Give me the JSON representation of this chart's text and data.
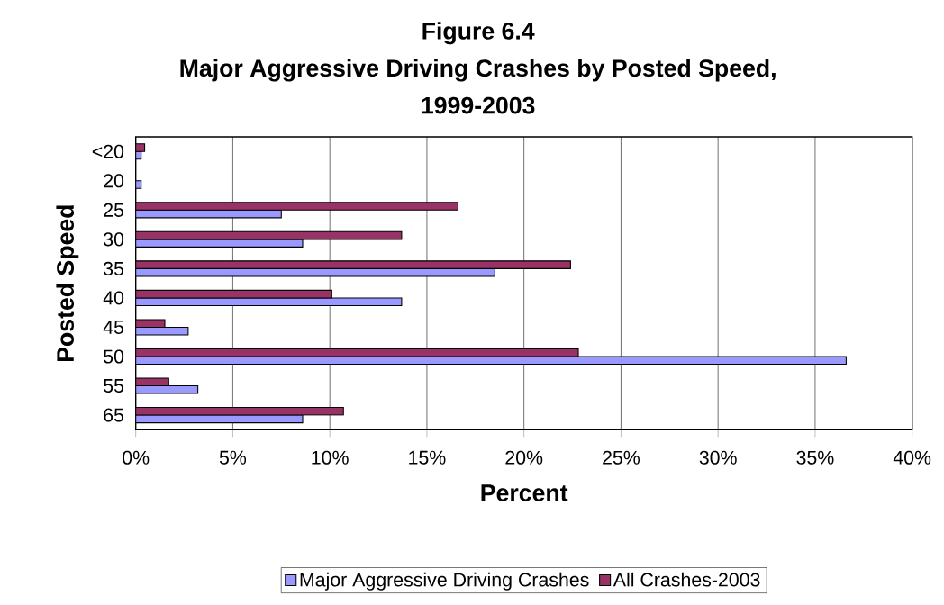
{
  "chart_data": {
    "type": "bar",
    "orientation": "horizontal",
    "title": "Figure 6.4\nMajor Aggressive Driving Crashes by Posted Speed,\n1999-2003",
    "xlabel": "Percent",
    "ylabel": "Posted Speed",
    "categories": [
      "<20",
      "20",
      "25",
      "30",
      "35",
      "40",
      "45",
      "50",
      "55",
      "65"
    ],
    "series": [
      {
        "name": "Major Aggressive Driving Crashes",
        "color": "#9999ff",
        "values": [
          0.28,
          0.28,
          7.5,
          8.6,
          18.5,
          13.7,
          2.7,
          36.6,
          3.2,
          8.6
        ]
      },
      {
        "name": "All Crashes-2003",
        "color": "#993366",
        "values": [
          0.46,
          null,
          16.6,
          13.7,
          22.4,
          10.1,
          1.5,
          22.8,
          1.7,
          10.7
        ]
      }
    ],
    "xlim": [
      0,
      40
    ],
    "xticks": [
      {
        "value": 0,
        "label": "0%"
      },
      {
        "value": 5,
        "label": "5%"
      },
      {
        "value": 10,
        "label": "10%"
      },
      {
        "value": 15,
        "label": "15%"
      },
      {
        "value": 20,
        "label": "20%"
      },
      {
        "value": 25,
        "label": "25%"
      },
      {
        "value": 30,
        "label": "30%"
      },
      {
        "value": 35,
        "label": "35%"
      },
      {
        "value": 40,
        "label": "40%"
      }
    ],
    "grid": "x",
    "legend": "bottom"
  }
}
